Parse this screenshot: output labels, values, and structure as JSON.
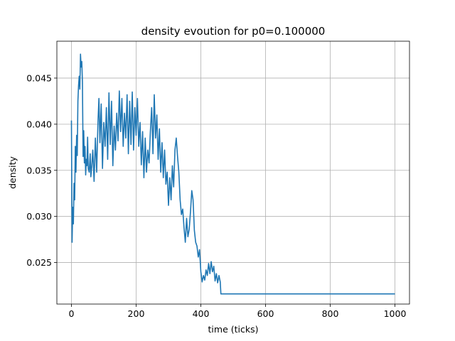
{
  "chart_data": {
    "type": "line",
    "title": "density evoution for p0=0.100000",
    "xlabel": "time (ticks)",
    "ylabel": "density",
    "xlim": [
      -45,
      1045
    ],
    "ylim": [
      0.0205,
      0.049
    ],
    "xticks": [
      0,
      200,
      400,
      600,
      800,
      1000
    ],
    "xtick_labels": [
      "0",
      "200",
      "400",
      "600",
      "800",
      "1000"
    ],
    "yticks": [
      0.025,
      0.03,
      0.035,
      0.04,
      0.045
    ],
    "ytick_labels": [
      "0.025",
      "0.030",
      "0.035",
      "0.040",
      "0.045"
    ],
    "grid": true,
    "legend": "none",
    "series": [
      {
        "color": "#1f77b4",
        "x": [
          0,
          2,
          4,
          6,
          8,
          10,
          12,
          14,
          16,
          18,
          20,
          22,
          24,
          26,
          28,
          30,
          32,
          34,
          36,
          38,
          40,
          42,
          44,
          46,
          48,
          50,
          52,
          55,
          58,
          60,
          63,
          66,
          70,
          74,
          78,
          82,
          85,
          88,
          92,
          96,
          100,
          104,
          108,
          112,
          116,
          120,
          124,
          128,
          132,
          136,
          140,
          144,
          148,
          152,
          156,
          160,
          164,
          168,
          172,
          176,
          180,
          184,
          188,
          192,
          196,
          200,
          204,
          208,
          212,
          216,
          220,
          224,
          228,
          232,
          236,
          240,
          244,
          248,
          252,
          256,
          260,
          264,
          268,
          272,
          276,
          280,
          284,
          288,
          292,
          296,
          300,
          304,
          308,
          312,
          316,
          320,
          324,
          328,
          332,
          336,
          340,
          344,
          348,
          352,
          356,
          360,
          364,
          368,
          372,
          376,
          380,
          384,
          388,
          392,
          396,
          400,
          404,
          408,
          412,
          416,
          420,
          424,
          428,
          432,
          436,
          440,
          444,
          448,
          452,
          456,
          460,
          462,
          600,
          800,
          1000
        ],
        "y": [
          0.0404,
          0.0272,
          0.031,
          0.0292,
          0.0336,
          0.0318,
          0.0376,
          0.0348,
          0.0388,
          0.0366,
          0.0425,
          0.0442,
          0.0452,
          0.0438,
          0.0476,
          0.0462,
          0.0468,
          0.0446,
          0.0365,
          0.0393,
          0.0358,
          0.0376,
          0.0345,
          0.0362,
          0.0355,
          0.0386,
          0.0352,
          0.0348,
          0.0368,
          0.0343,
          0.0355,
          0.0372,
          0.0338,
          0.0385,
          0.0348,
          0.0402,
          0.0428,
          0.038,
          0.0422,
          0.0352,
          0.0402,
          0.0376,
          0.0418,
          0.0362,
          0.0434,
          0.0378,
          0.0425,
          0.0355,
          0.0398,
          0.0372,
          0.0412,
          0.0382,
          0.0436,
          0.0392,
          0.0428,
          0.0376,
          0.0412,
          0.0385,
          0.0432,
          0.0368,
          0.0425,
          0.0378,
          0.0435,
          0.0372,
          0.0418,
          0.0388,
          0.0428,
          0.0376,
          0.0402,
          0.0356,
          0.0392,
          0.0342,
          0.0385,
          0.0348,
          0.0372,
          0.0358,
          0.0392,
          0.0418,
          0.0368,
          0.0432,
          0.0385,
          0.041,
          0.0362,
          0.0395,
          0.0348,
          0.038,
          0.0342,
          0.0372,
          0.0335,
          0.0348,
          0.0312,
          0.0342,
          0.0318,
          0.0355,
          0.0332,
          0.0372,
          0.0385,
          0.0365,
          0.0348,
          0.0318,
          0.0302,
          0.0308,
          0.0288,
          0.0272,
          0.0298,
          0.0278,
          0.0286,
          0.0305,
          0.0328,
          0.0318,
          0.0285,
          0.0272,
          0.0268,
          0.0256,
          0.0264,
          0.024,
          0.0229,
          0.0236,
          0.0231,
          0.0242,
          0.0236,
          0.0249,
          0.0238,
          0.0251,
          0.024,
          0.0246,
          0.023,
          0.0238,
          0.0228,
          0.0236,
          0.0229,
          0.0216,
          0.0216,
          0.0216,
          0.0216
        ]
      }
    ]
  }
}
